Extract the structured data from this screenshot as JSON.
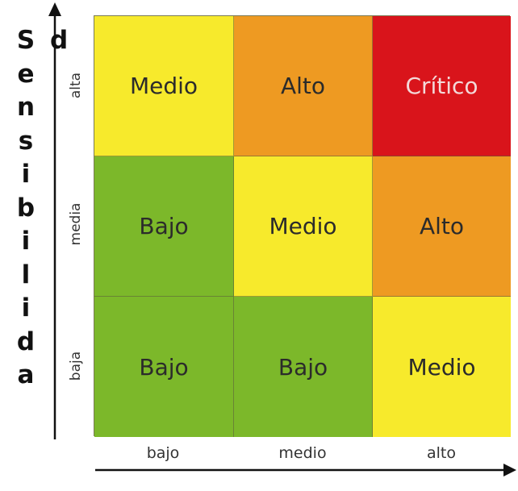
{
  "side_title": {
    "letters": [
      "S",
      "e",
      "n",
      "s",
      "i",
      "b",
      "i",
      "l",
      "i",
      "d",
      "a"
    ],
    "extra_letter": "d"
  },
  "y_axis": {
    "ticks": [
      "alta",
      "media",
      "baja"
    ]
  },
  "x_axis": {
    "ticks": [
      "bajo",
      "medio",
      "alto"
    ]
  },
  "colors": {
    "green": "#7cb82a",
    "yellow": "#f7ea2c",
    "orange": "#ee9a22",
    "red": "#d9141b"
  },
  "matrix": {
    "rows": [
      {
        "cells": [
          {
            "label": "Medio",
            "level": "yellow"
          },
          {
            "label": "Alto",
            "level": "orange"
          },
          {
            "label": "Crítico",
            "level": "red"
          }
        ]
      },
      {
        "cells": [
          {
            "label": "Bajo",
            "level": "green"
          },
          {
            "label": "Medio",
            "level": "yellow"
          },
          {
            "label": "Alto",
            "level": "orange"
          }
        ]
      },
      {
        "cells": [
          {
            "label": "Bajo",
            "level": "green"
          },
          {
            "label": "Bajo",
            "level": "green"
          },
          {
            "label": "Medio",
            "level": "yellow"
          }
        ]
      }
    ]
  }
}
